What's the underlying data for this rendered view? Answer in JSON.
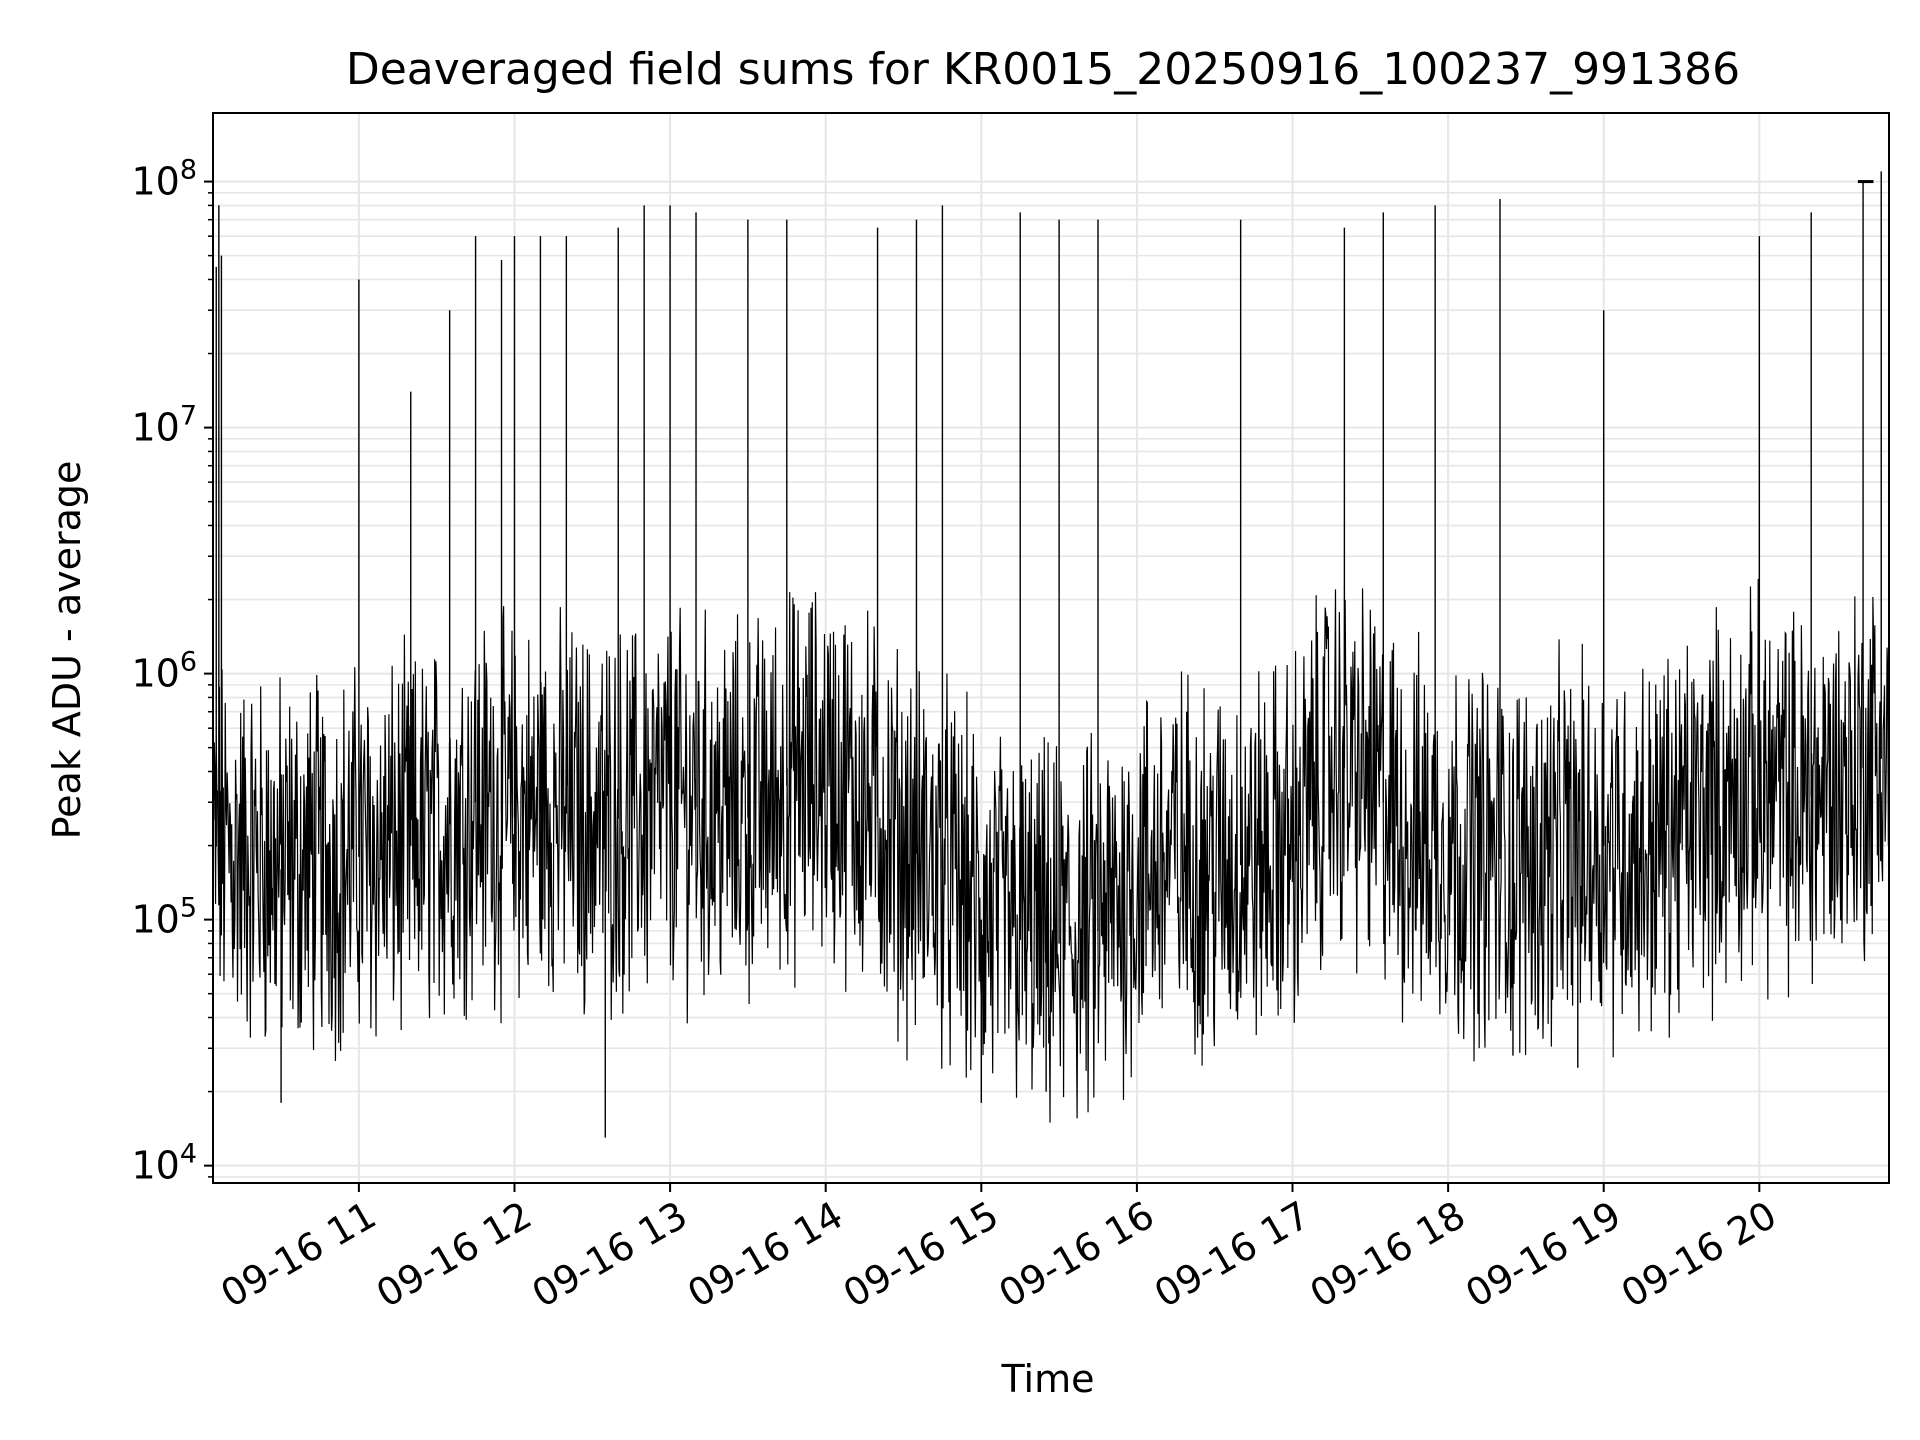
{
  "chart_data": {
    "type": "line",
    "title": "Deaveraged field sums for KR0015_20250916_100237_991386",
    "xlabel": "Time",
    "ylabel": "Peak ADU - average",
    "yscale": "log",
    "ylim": [
      8500,
      190000000
    ],
    "xlim": [
      "2025-09-16T10:03:45",
      "2025-09-16T20:50:00"
    ],
    "yticks": [
      {
        "value": 10000,
        "base": "10",
        "exp": "4"
      },
      {
        "value": 100000,
        "base": "10",
        "exp": "5"
      },
      {
        "value": 1000000,
        "base": "10",
        "exp": "6"
      },
      {
        "value": 10000000,
        "base": "10",
        "exp": "7"
      },
      {
        "value": 100000000,
        "base": "10",
        "exp": "8"
      }
    ],
    "xticks": [
      {
        "time": "2025-09-16T11:00:00",
        "label": "09-16 11"
      },
      {
        "time": "2025-09-16T12:00:00",
        "label": "09-16 12"
      },
      {
        "time": "2025-09-16T13:00:00",
        "label": "09-16 13"
      },
      {
        "time": "2025-09-16T14:00:00",
        "label": "09-16 14"
      },
      {
        "time": "2025-09-16T15:00:00",
        "label": "09-16 15"
      },
      {
        "time": "2025-09-16T16:00:00",
        "label": "09-16 16"
      },
      {
        "time": "2025-09-16T17:00:00",
        "label": "09-16 17"
      },
      {
        "time": "2025-09-16T18:00:00",
        "label": "09-16 18"
      },
      {
        "time": "2025-09-16T19:00:00",
        "label": "09-16 19"
      },
      {
        "time": "2025-09-16T20:00:00",
        "label": "09-16 20"
      }
    ],
    "grid": true,
    "line_color": "#000000",
    "grid_color": "#e6e6e6",
    "series": [
      {
        "x": [
          "2025-09-16T10:04:00",
          "2025-09-16T10:15:00",
          "2025-09-16T10:25:00",
          "2025-09-16T10:30:00",
          "2025-09-16T10:45:00",
          "2025-09-16T11:00:00",
          "2025-09-16T11:15:00",
          "2025-09-16T11:30:00",
          "2025-09-16T11:45:00",
          "2025-09-16T12:00:00",
          "2025-09-16T12:15:00",
          "2025-09-16T12:30:00",
          "2025-09-16T12:45:00",
          "2025-09-16T13:00:00",
          "2025-09-16T13:15:00",
          "2025-09-16T13:30:00",
          "2025-09-16T13:45:00",
          "2025-09-16T14:00:00",
          "2025-09-16T14:15:00",
          "2025-09-16T14:30:00",
          "2025-09-16T14:45:00",
          "2025-09-16T15:00:00",
          "2025-09-16T15:15:00",
          "2025-09-16T15:30:00",
          "2025-09-16T15:45:00",
          "2025-09-16T16:00:00",
          "2025-09-16T16:15:00",
          "2025-09-16T16:30:00",
          "2025-09-16T16:45:00",
          "2025-09-16T17:00:00",
          "2025-09-16T17:15:00",
          "2025-09-16T17:30:00",
          "2025-09-16T17:45:00",
          "2025-09-16T18:00:00",
          "2025-09-16T18:15:00",
          "2025-09-16T18:30:00",
          "2025-09-16T18:45:00",
          "2025-09-16T19:00:00",
          "2025-09-16T19:15:00",
          "2025-09-16T19:30:00",
          "2025-09-16T19:45:00",
          "2025-09-16T20:00:00",
          "2025-09-16T20:15:00",
          "2025-09-16T20:30:00",
          "2025-09-16T20:45:00"
        ],
        "y": [
          200000,
          180000,
          170000,
          160000,
          170000,
          180000,
          190000,
          220000,
          300000,
          260000,
          280000,
          250000,
          260000,
          300000,
          280000,
          260000,
          350000,
          400000,
          300000,
          200000,
          160000,
          100000,
          90000,
          80000,
          90000,
          150000,
          180000,
          160000,
          170000,
          200000,
          450000,
          350000,
          220000,
          200000,
          180000,
          170000,
          190000,
          200000,
          190000,
          240000,
          300000,
          350000,
          300000,
          350000,
          450000
        ]
      }
    ],
    "spikes": [
      {
        "x": "2025-09-16T10:05:00",
        "y": 45000000
      },
      {
        "x": "2025-09-16T10:06:00",
        "y": 80000000
      },
      {
        "x": "2025-09-16T10:07:00",
        "y": 50000000
      },
      {
        "x": "2025-09-16T11:00:00",
        "y": 40000000
      },
      {
        "x": "2025-09-16T11:20:00",
        "y": 14000000
      },
      {
        "x": "2025-09-16T11:35:00",
        "y": 30000000
      },
      {
        "x": "2025-09-16T11:45:00",
        "y": 60000000
      },
      {
        "x": "2025-09-16T11:55:00",
        "y": 48000000
      },
      {
        "x": "2025-09-16T12:00:00",
        "y": 60000000
      },
      {
        "x": "2025-09-16T12:10:00",
        "y": 60000000
      },
      {
        "x": "2025-09-16T12:20:00",
        "y": 60000000
      },
      {
        "x": "2025-09-16T12:40:00",
        "y": 65000000
      },
      {
        "x": "2025-09-16T12:50:00",
        "y": 80000000
      },
      {
        "x": "2025-09-16T13:00:00",
        "y": 80000000
      },
      {
        "x": "2025-09-16T13:10:00",
        "y": 75000000
      },
      {
        "x": "2025-09-16T13:30:00",
        "y": 70000000
      },
      {
        "x": "2025-09-16T13:45:00",
        "y": 70000000
      },
      {
        "x": "2025-09-16T14:20:00",
        "y": 65000000
      },
      {
        "x": "2025-09-16T14:35:00",
        "y": 70000000
      },
      {
        "x": "2025-09-16T14:45:00",
        "y": 80000000
      },
      {
        "x": "2025-09-16T15:15:00",
        "y": 75000000
      },
      {
        "x": "2025-09-16T15:30:00",
        "y": 70000000
      },
      {
        "x": "2025-09-16T15:45:00",
        "y": 70000000
      },
      {
        "x": "2025-09-16T16:40:00",
        "y": 70000000
      },
      {
        "x": "2025-09-16T17:20:00",
        "y": 65000000
      },
      {
        "x": "2025-09-16T17:35:00",
        "y": 75000000
      },
      {
        "x": "2025-09-16T17:55:00",
        "y": 80000000
      },
      {
        "x": "2025-09-16T18:20:00",
        "y": 85000000
      },
      {
        "x": "2025-09-16T19:00:00",
        "y": 30000000
      },
      {
        "x": "2025-09-16T20:00:00",
        "y": 60000000
      },
      {
        "x": "2025-09-16T20:20:00",
        "y": 75000000
      },
      {
        "x": "2025-09-16T20:40:00",
        "y": 100000000
      },
      {
        "x": "2025-09-16T20:47:00",
        "y": 110000000
      }
    ],
    "dips": [
      {
        "x": "2025-09-16T10:30:00",
        "y": 18000
      },
      {
        "x": "2025-09-16T12:35:00",
        "y": 13000
      },
      {
        "x": "2025-09-16T15:00:00",
        "y": 18000
      },
      {
        "x": "2025-09-16T15:25:00",
        "y": 20000
      },
      {
        "x": "2025-09-16T18:25:00",
        "y": 28000
      },
      {
        "x": "2025-09-16T18:50:00",
        "y": 25000
      }
    ],
    "plateau": {
      "x_start": "2025-09-16T20:38:00",
      "x_end": "2025-09-16T20:44:00",
      "y": 100000000
    }
  }
}
